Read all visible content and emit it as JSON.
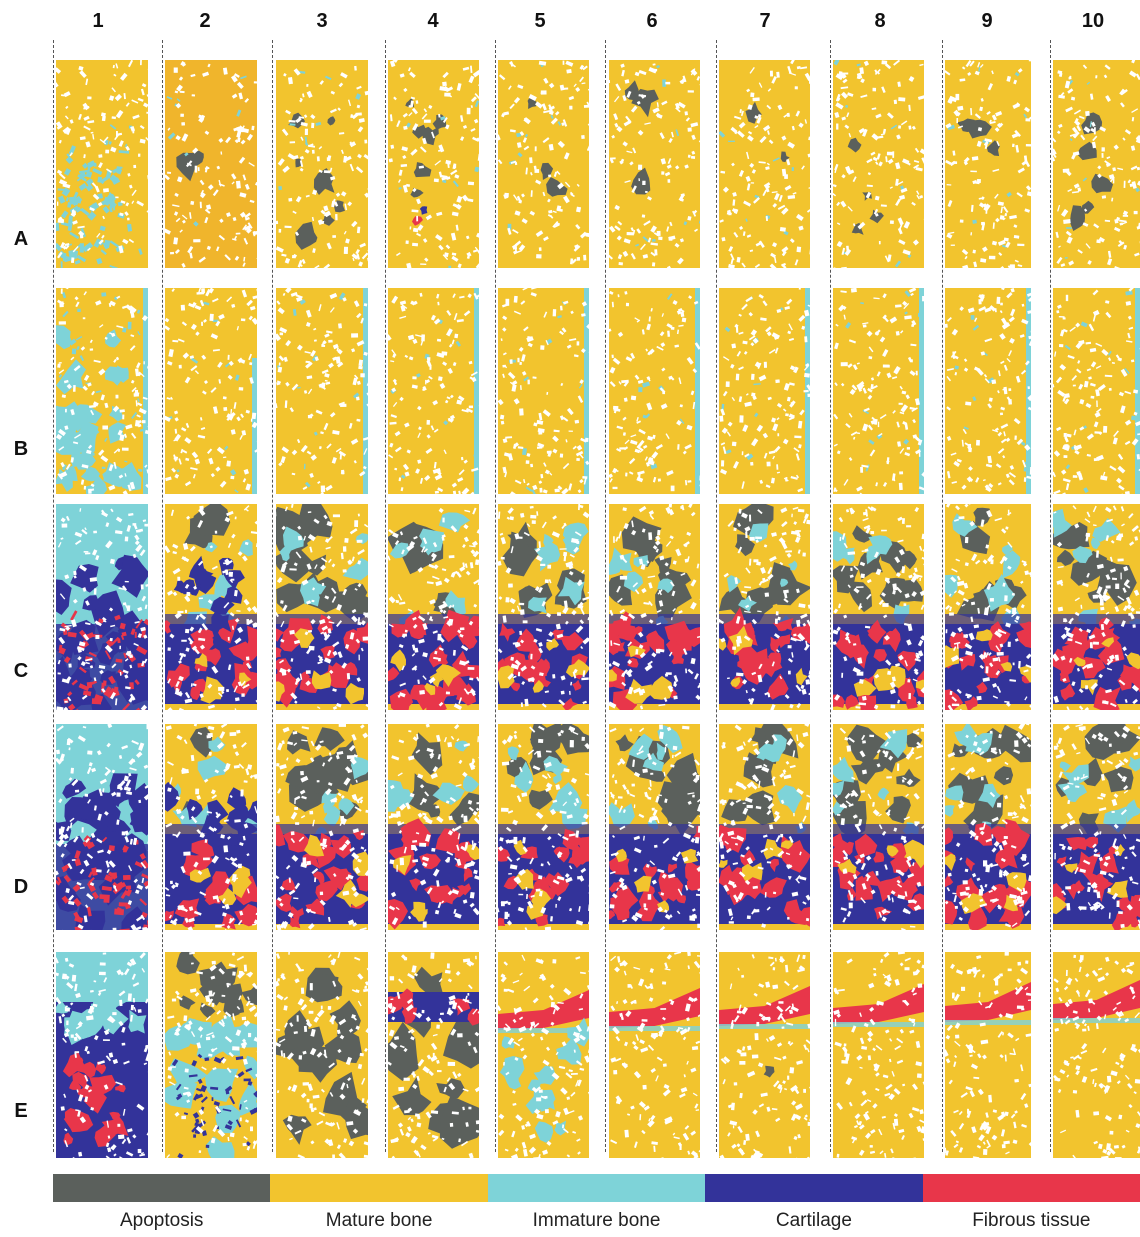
{
  "columns": [
    "1",
    "2",
    "3",
    "4",
    "5",
    "6",
    "7",
    "8",
    "9",
    "10"
  ],
  "rows": [
    "A",
    "B",
    "C",
    "D",
    "E"
  ],
  "legend": [
    {
      "label": "Apoptosis",
      "color": "#5b605c"
    },
    {
      "label": "Mature bone",
      "color": "#f2c42e"
    },
    {
      "label": "Immature bone",
      "color": "#7ed3d8"
    },
    {
      "label": "Cartilage",
      "color": "#33339a"
    },
    {
      "label": "Fibrous tissue",
      "color": "#e8364a"
    }
  ]
}
